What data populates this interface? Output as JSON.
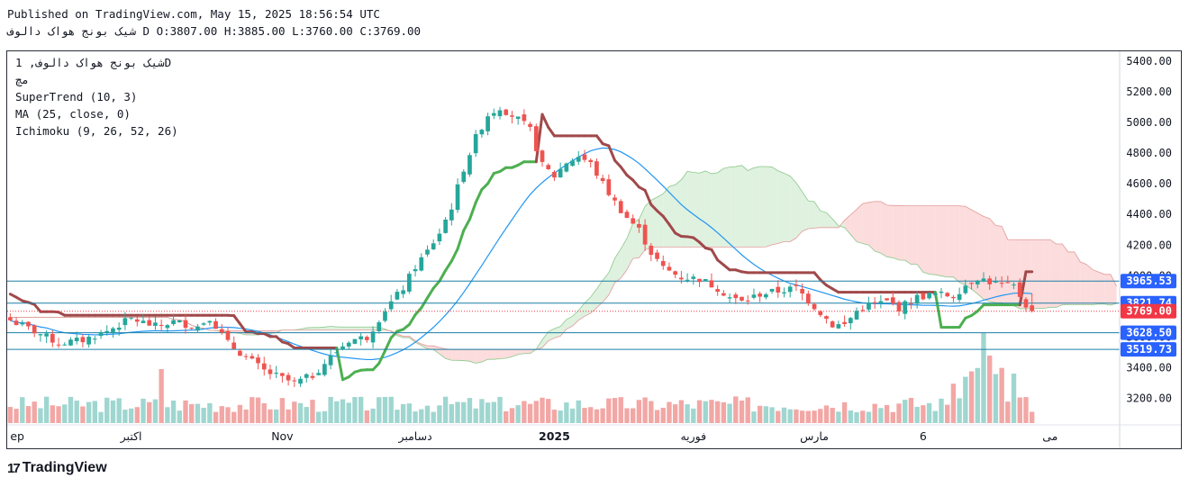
{
  "header": {
    "published": "Published on TradingView.com, May 15, 2025 18:56:54 UTC",
    "ohlc_line": "شیک بونج هواک دالوف D O:3807.00 H:3885.00 L:3760.00 C:3769.00"
  },
  "legend": {
    "symbol": "شیک بونج هواک دالوف, 1D",
    "exchange": "مچ",
    "supertrend": "SuperTrend (10, 3)",
    "ma": "MA (25, close, 0)",
    "ichimoku": "Ichimoku (9, 26, 52, 26)"
  },
  "brand": {
    "name": "TradingView",
    "logo_text": "17"
  },
  "colors": {
    "up": "#26a69a",
    "down": "#ef5350",
    "st_up": "#4caf50",
    "st_down": "#a0494a",
    "ma": "#2196f3",
    "hline": "#1c7fa6",
    "cloud_bear": "#fcdcdc",
    "cloud_bull": "#dff1df",
    "price_badge": "#f23645",
    "level_badge": "#2962ff"
  },
  "chart_data": {
    "type": "candlestick",
    "title": "شیک بونج هواک دالوف, 1D",
    "y_axis": {
      "ticks": [
        3200,
        3400,
        3600,
        3800,
        4000,
        4200,
        4400,
        4600,
        4800,
        5000,
        5200,
        5400
      ],
      "tick_labels": [
        "3200.00",
        "3400.00",
        "3600.00",
        "3800.00",
        "4000.00",
        "4200.00",
        "4400.00",
        "4600.00",
        "4800.00",
        "5000.00",
        "5200.00",
        "5400.00"
      ],
      "range": [
        3050,
        5470
      ]
    },
    "x_axis": {
      "labels": [
        {
          "text": "ep",
          "bar": 0,
          "bold": false
        },
        {
          "text": "اکتبر",
          "bar": 20,
          "bold": false
        },
        {
          "text": "Nov",
          "bar": 45,
          "bold": false
        },
        {
          "text": "دسامبر",
          "bar": 67,
          "bold": false
        },
        {
          "text": "2025",
          "bar": 90,
          "bold": true
        },
        {
          "text": "فوریه",
          "bar": 113,
          "bold": false
        },
        {
          "text": "مارس",
          "bar": 133,
          "bold": false
        },
        {
          "text": "6",
          "bar": 151,
          "bold": false
        },
        {
          "text": "می",
          "bar": 172,
          "bold": false
        }
      ],
      "bar_count": 184
    },
    "horizontal_levels": [
      {
        "value": 3965.53,
        "label": "3965.53"
      },
      {
        "value": 3821.74,
        "label": "3821.74"
      },
      {
        "value": 3628.5,
        "label": "3628.50"
      },
      {
        "value": 3519.73,
        "label": "3519.73"
      }
    ],
    "last_price": {
      "value": 3769.0,
      "label": "3769.00"
    },
    "ohlc": {
      "open": 3807.0,
      "high": 3885.0,
      "low": 3760.0,
      "close": 3769.0
    },
    "close_anchors": [
      [
        0,
        3710
      ],
      [
        5,
        3620
      ],
      [
        8,
        3560
      ],
      [
        12,
        3580
      ],
      [
        16,
        3640
      ],
      [
        20,
        3720
      ],
      [
        24,
        3670
      ],
      [
        27,
        3700
      ],
      [
        31,
        3670
      ],
      [
        33,
        3730
      ],
      [
        36,
        3560
      ],
      [
        39,
        3470
      ],
      [
        42,
        3380
      ],
      [
        45,
        3330
      ],
      [
        47,
        3300
      ],
      [
        50,
        3350
      ],
      [
        53,
        3470
      ],
      [
        56,
        3580
      ],
      [
        59,
        3600
      ],
      [
        62,
        3780
      ],
      [
        65,
        3920
      ],
      [
        67,
        4060
      ],
      [
        69,
        4160
      ],
      [
        71,
        4280
      ],
      [
        73,
        4450
      ],
      [
        75,
        4700
      ],
      [
        77,
        4900
      ],
      [
        79,
        5050
      ],
      [
        81,
        5100
      ],
      [
        84,
        5020
      ],
      [
        86,
        4950
      ],
      [
        88,
        4720
      ],
      [
        90,
        4650
      ],
      [
        92,
        4740
      ],
      [
        94,
        4780
      ],
      [
        96,
        4730
      ],
      [
        98,
        4600
      ],
      [
        100,
        4480
      ],
      [
        102,
        4380
      ],
      [
        104,
        4300
      ],
      [
        106,
        4150
      ],
      [
        108,
        4050
      ],
      [
        111,
        3990
      ],
      [
        114,
        3980
      ],
      [
        117,
        3920
      ],
      [
        119,
        3860
      ],
      [
        121,
        3830
      ],
      [
        124,
        3880
      ],
      [
        127,
        3900
      ],
      [
        130,
        3920
      ],
      [
        132,
        3840
      ],
      [
        134,
        3760
      ],
      [
        136,
        3680
      ],
      [
        138,
        3680
      ],
      [
        140,
        3770
      ],
      [
        142,
        3810
      ],
      [
        145,
        3830
      ],
      [
        147,
        3790
      ],
      [
        150,
        3860
      ],
      [
        153,
        3880
      ],
      [
        156,
        3870
      ],
      [
        158,
        3940
      ],
      [
        160,
        3990
      ],
      [
        162,
        3960
      ],
      [
        164,
        3940
      ],
      [
        166,
        3930
      ],
      [
        168,
        3810
      ],
      [
        169,
        3769
      ]
    ],
    "volume_range": [
      0,
      1
    ]
  }
}
